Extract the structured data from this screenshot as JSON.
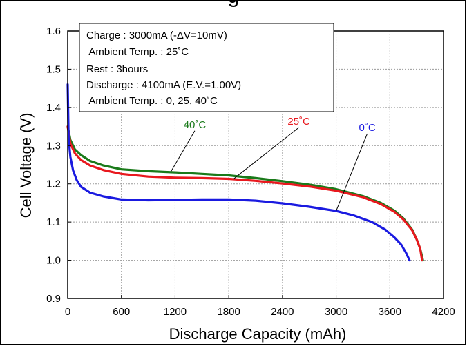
{
  "header": {
    "title_fragment": "g"
  },
  "chart_data": {
    "type": "line",
    "title": "",
    "xlabel": "Discharge Capacity (mAh)",
    "ylabel": "Cell Voltage (V)",
    "xlim": [
      0,
      4200
    ],
    "ylim": [
      0.9,
      1.6
    ],
    "xticks": [
      "0",
      "600",
      "1200",
      "1800",
      "2400",
      "3000",
      "3600",
      "4200"
    ],
    "yticks": [
      "0.9",
      "1.0",
      "1.1",
      "1.2",
      "1.3",
      "1.4",
      "1.5",
      "1.6"
    ],
    "grid": true,
    "conditions": [
      "Charge : 3000mA (-ΔV=10mV)",
      " Ambient Temp. : 25˚C",
      "Rest : 3hours",
      "Discharge : 4100mA (E.V.=1.00V)",
      " Ambient Temp. : 0, 25, 40˚C"
    ],
    "series": [
      {
        "name": "40˚C",
        "color": "#1a7a1a",
        "x": [
          0,
          30,
          80,
          150,
          250,
          400,
          600,
          900,
          1200,
          1500,
          1800,
          2100,
          2400,
          2700,
          3000,
          3300,
          3500,
          3650,
          3750,
          3850,
          3900,
          3940,
          3970
        ],
        "y": [
          1.35,
          1.315,
          1.29,
          1.275,
          1.26,
          1.248,
          1.238,
          1.233,
          1.23,
          1.226,
          1.222,
          1.215,
          1.207,
          1.198,
          1.186,
          1.168,
          1.15,
          1.13,
          1.11,
          1.08,
          1.055,
          1.03,
          1.0
        ]
      },
      {
        "name": "25˚C",
        "color": "#e8181e",
        "x": [
          0,
          30,
          80,
          150,
          250,
          400,
          600,
          900,
          1200,
          1500,
          1800,
          2100,
          2400,
          2700,
          3000,
          3300,
          3500,
          3650,
          3750,
          3850,
          3900,
          3940,
          3960
        ],
        "y": [
          1.35,
          1.305,
          1.28,
          1.262,
          1.248,
          1.236,
          1.226,
          1.219,
          1.216,
          1.215,
          1.213,
          1.208,
          1.201,
          1.193,
          1.182,
          1.165,
          1.147,
          1.127,
          1.107,
          1.078,
          1.055,
          1.03,
          1.0
        ]
      },
      {
        "name": "0˚C",
        "color": "#1a1ae0",
        "x": [
          0,
          10,
          30,
          60,
          100,
          150,
          250,
          400,
          600,
          900,
          1200,
          1500,
          1800,
          2100,
          2400,
          2700,
          3000,
          3200,
          3400,
          3550,
          3650,
          3730,
          3780,
          3820
        ],
        "y": [
          1.46,
          1.32,
          1.27,
          1.235,
          1.21,
          1.192,
          1.177,
          1.167,
          1.159,
          1.157,
          1.158,
          1.159,
          1.159,
          1.156,
          1.149,
          1.14,
          1.129,
          1.117,
          1.1,
          1.08,
          1.06,
          1.04,
          1.02,
          1.0
        ]
      }
    ],
    "annotations": [
      {
        "text": "40˚C",
        "series": 0
      },
      {
        "text": "25˚C",
        "series": 1
      },
      {
        "text": "0˚C",
        "series": 2
      }
    ]
  }
}
